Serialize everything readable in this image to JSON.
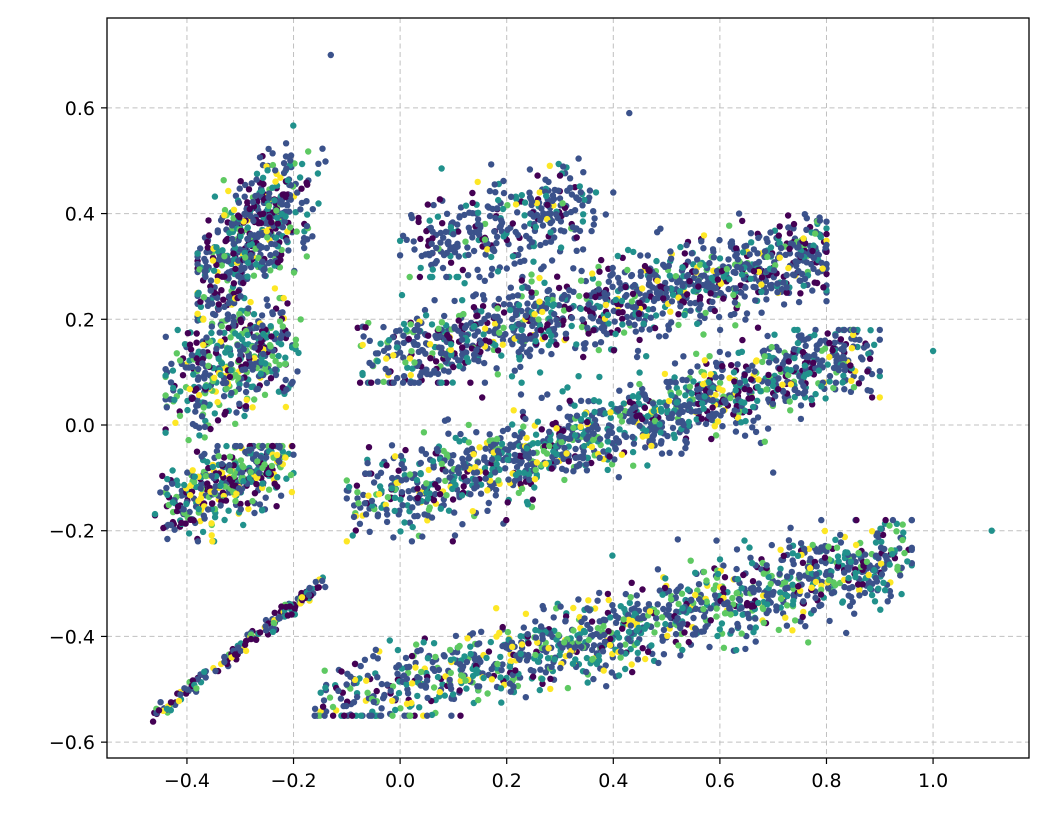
{
  "chart_data": {
    "type": "scatter",
    "title": "",
    "xlabel": "",
    "ylabel": "",
    "xlim": [
      -0.55,
      1.18
    ],
    "ylim": [
      -0.63,
      0.77
    ],
    "grid": true,
    "grid_style": "dashed",
    "grid_color": "#c0c0c0",
    "legend": "none",
    "x_ticks": [
      {
        "value": -0.4,
        "label": "−0.4"
      },
      {
        "value": -0.2,
        "label": "−0.2"
      },
      {
        "value": 0.0,
        "label": "0.0"
      },
      {
        "value": 0.2,
        "label": "0.2"
      },
      {
        "value": 0.4,
        "label": "0.4"
      },
      {
        "value": 0.6,
        "label": "0.6"
      },
      {
        "value": 0.8,
        "label": "0.8"
      },
      {
        "value": 1.0,
        "label": "1.0"
      }
    ],
    "y_ticks": [
      {
        "value": -0.6,
        "label": "−0.6"
      },
      {
        "value": -0.4,
        "label": "−0.4"
      },
      {
        "value": -0.2,
        "label": "−0.2"
      },
      {
        "value": 0.0,
        "label": "0.0"
      },
      {
        "value": 0.2,
        "label": "0.2"
      },
      {
        "value": 0.4,
        "label": "0.4"
      },
      {
        "value": 0.6,
        "label": "0.6"
      }
    ],
    "colormap": "viridis",
    "colors": [
      "#440154",
      "#3b528b",
      "#21918c",
      "#5ec962",
      "#fde725"
    ],
    "clusters": [
      {
        "name_hint": "upper-left lobe",
        "x_range": [
          -0.38,
          -0.14
        ],
        "y_range": [
          0.12,
          0.58
        ],
        "trend": [
          -0.36,
          0.25,
          -0.2,
          0.45
        ],
        "spread": 0.05,
        "count": 520,
        "color_weights": [
          0.2,
          0.45,
          0.2,
          0.1,
          0.05
        ]
      },
      {
        "name_hint": "left middle lobe",
        "x_range": [
          -0.44,
          -0.16
        ],
        "y_range": [
          -0.06,
          0.24
        ],
        "trend": [
          -0.42,
          0.07,
          -0.22,
          0.16
        ],
        "spread": 0.05,
        "count": 420,
        "color_weights": [
          0.2,
          0.35,
          0.2,
          0.15,
          0.1
        ]
      },
      {
        "name_hint": "left lower lobe",
        "x_range": [
          -0.46,
          -0.2
        ],
        "y_range": [
          -0.22,
          -0.04
        ],
        "trend": [
          -0.44,
          -0.17,
          -0.22,
          -0.06
        ],
        "spread": 0.035,
        "count": 380,
        "color_weights": [
          0.2,
          0.3,
          0.2,
          0.15,
          0.15
        ]
      },
      {
        "name_hint": "diagonal line",
        "x_range": [
          -0.47,
          -0.1
        ],
        "y_range": [
          -0.57,
          -0.26
        ],
        "trend": [
          -0.47,
          -0.56,
          -0.15,
          -0.3
        ],
        "spread": 0.008,
        "count": 160,
        "color_weights": [
          0.35,
          0.3,
          0.15,
          0.1,
          0.1
        ]
      },
      {
        "name_hint": "top middle cluster",
        "x_range": [
          0.0,
          0.4
        ],
        "y_range": [
          0.28,
          0.55
        ],
        "trend": [
          0.02,
          0.33,
          0.35,
          0.42
        ],
        "spread": 0.04,
        "count": 330,
        "color_weights": [
          0.15,
          0.65,
          0.15,
          0.03,
          0.02
        ]
      },
      {
        "name_hint": "upper band",
        "x_range": [
          -0.1,
          0.8
        ],
        "y_range": [
          0.08,
          0.4
        ],
        "trend": [
          -0.06,
          0.12,
          0.8,
          0.33
        ],
        "spread": 0.04,
        "count": 1150,
        "color_weights": [
          0.15,
          0.55,
          0.17,
          0.08,
          0.05
        ]
      },
      {
        "name_hint": "middle band",
        "x_range": [
          -0.1,
          0.9
        ],
        "y_range": [
          -0.22,
          0.18
        ],
        "trend": [
          -0.08,
          -0.15,
          0.88,
          0.14
        ],
        "spread": 0.04,
        "count": 1300,
        "color_weights": [
          0.13,
          0.5,
          0.2,
          0.1,
          0.07
        ]
      },
      {
        "name_hint": "lower band",
        "x_range": [
          -0.16,
          0.96
        ],
        "y_range": [
          -0.55,
          -0.18
        ],
        "trend": [
          -0.14,
          -0.54,
          0.95,
          -0.24
        ],
        "spread": 0.04,
        "count": 1250,
        "color_weights": [
          0.1,
          0.45,
          0.22,
          0.13,
          0.1
        ]
      }
    ],
    "outliers": [
      {
        "x": -0.13,
        "y": 0.7,
        "color": "#3b528b"
      },
      {
        "x": 1.0,
        "y": 0.14,
        "color": "#21918c"
      },
      {
        "x": 1.11,
        "y": -0.2,
        "color": "#21918c"
      },
      {
        "x": 0.43,
        "y": 0.59,
        "color": "#3b528b"
      },
      {
        "x": 0.7,
        "y": -0.09,
        "color": "#3b528b"
      }
    ]
  }
}
